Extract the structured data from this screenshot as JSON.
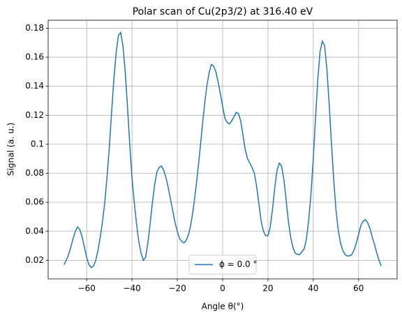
{
  "chart_data": {
    "type": "line",
    "title": "Polar scan of Cu(2p3/2) at 316.40 eV",
    "x_label": "Angle θ(°)",
    "y_label": "Signal (a. u.)",
    "x": [
      -70,
      -69,
      -68,
      -67,
      -66,
      -65,
      -64,
      -63,
      -62,
      -61,
      -60,
      -59,
      -58,
      -57,
      -56,
      -55,
      -54,
      -53,
      -52,
      -51,
      -50,
      -49,
      -48,
      -47,
      -46,
      -45,
      -44,
      -43,
      -42,
      -41,
      -40,
      -39,
      -38,
      -37,
      -36,
      -35,
      -34,
      -33,
      -32,
      -31,
      -30,
      -29,
      -28,
      -27,
      -26,
      -25,
      -24,
      -23,
      -22,
      -21,
      -20,
      -19,
      -18,
      -17,
      -16,
      -15,
      -14,
      -13,
      -12,
      -11,
      -10,
      -9,
      -8,
      -7,
      -6,
      -5,
      -4,
      -3,
      -2,
      -1,
      0,
      1,
      2,
      3,
      4,
      5,
      6,
      7,
      8,
      9,
      10,
      11,
      12,
      13,
      14,
      15,
      16,
      17,
      18,
      19,
      20,
      21,
      22,
      23,
      24,
      25,
      26,
      27,
      28,
      29,
      30,
      31,
      32,
      33,
      34,
      35,
      36,
      37,
      38,
      39,
      40,
      41,
      42,
      43,
      44,
      45,
      46,
      47,
      48,
      49,
      50,
      51,
      52,
      53,
      54,
      55,
      56,
      57,
      58,
      59,
      60,
      61,
      62,
      63,
      64,
      65,
      66,
      67,
      68,
      69,
      70
    ],
    "series": [
      {
        "name": "ϕ = 0.0 °",
        "color": "#1f77b4",
        "values": [
          0.017,
          0.02,
          0.024,
          0.029,
          0.035,
          0.04,
          0.043,
          0.041,
          0.036,
          0.029,
          0.022,
          0.017,
          0.015,
          0.016,
          0.02,
          0.027,
          0.036,
          0.047,
          0.06,
          0.078,
          0.098,
          0.122,
          0.145,
          0.163,
          0.175,
          0.177,
          0.168,
          0.15,
          0.126,
          0.1,
          0.077,
          0.06,
          0.045,
          0.033,
          0.025,
          0.02,
          0.022,
          0.032,
          0.045,
          0.06,
          0.072,
          0.081,
          0.084,
          0.085,
          0.082,
          0.077,
          0.07,
          0.062,
          0.054,
          0.046,
          0.04,
          0.035,
          0.033,
          0.032,
          0.034,
          0.038,
          0.045,
          0.055,
          0.067,
          0.081,
          0.096,
          0.112,
          0.127,
          0.14,
          0.149,
          0.155,
          0.154,
          0.15,
          0.143,
          0.135,
          0.126,
          0.118,
          0.115,
          0.114,
          0.116,
          0.119,
          0.122,
          0.121,
          0.116,
          0.106,
          0.096,
          0.09,
          0.087,
          0.084,
          0.08,
          0.071,
          0.059,
          0.047,
          0.04,
          0.037,
          0.037,
          0.043,
          0.055,
          0.07,
          0.082,
          0.087,
          0.085,
          0.076,
          0.062,
          0.047,
          0.036,
          0.029,
          0.025,
          0.024,
          0.024,
          0.026,
          0.028,
          0.035,
          0.048,
          0.066,
          0.09,
          0.118,
          0.145,
          0.164,
          0.171,
          0.168,
          0.152,
          0.128,
          0.101,
          0.076,
          0.055,
          0.041,
          0.032,
          0.027,
          0.024,
          0.023,
          0.023,
          0.024,
          0.027,
          0.032,
          0.038,
          0.044,
          0.047,
          0.048,
          0.046,
          0.042,
          0.036,
          0.031,
          0.025,
          0.02,
          0.016
        ]
      }
    ],
    "xlim": [
      -77,
      77
    ],
    "ylim": [
      0.0072,
      0.1855
    ],
    "xticks": [
      {
        "value": -60,
        "label": "−60"
      },
      {
        "value": -40,
        "label": "−40"
      },
      {
        "value": -20,
        "label": "−20"
      },
      0,
      20,
      40,
      60
    ],
    "yticks": [
      0.02,
      0.04,
      0.06,
      0.08,
      0.1,
      0.12,
      0.14,
      0.16,
      0.18
    ],
    "grid": true,
    "legend": "lower center"
  }
}
